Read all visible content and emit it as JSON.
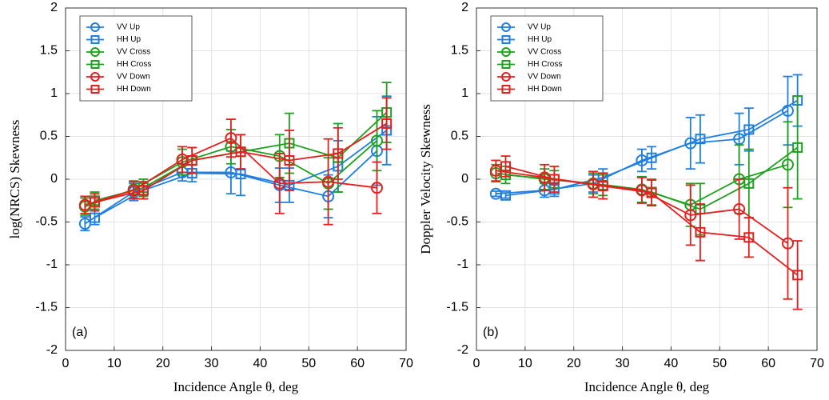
{
  "chart_data": [
    {
      "type": "line",
      "panel_label": "(a)",
      "ylabel": "log(NRCS) Skewness",
      "xlabel": "Incidence Angle θ, deg",
      "xlim": [
        0,
        70
      ],
      "ylim": [
        -2,
        2
      ],
      "xticks": [
        0,
        10,
        20,
        30,
        40,
        50,
        60,
        70
      ],
      "yticks": [
        -2,
        -1.5,
        -1,
        -0.5,
        0,
        0.5,
        1,
        1.5,
        2
      ],
      "grid": true,
      "series": [
        {
          "name": "VV Up",
          "color": "#1f7fe0",
          "marker": "circle",
          "x": [
            4,
            14,
            24,
            34,
            44,
            54,
            64
          ],
          "values": [
            -0.52,
            -0.15,
            0.08,
            0.08,
            -0.07,
            -0.2,
            0.33
          ],
          "errors": [
            0.08,
            0.1,
            0.1,
            0.25,
            0.2,
            0.25,
            0.4
          ]
        },
        {
          "name": "HH Up",
          "color": "#1f7fe0",
          "marker": "square",
          "x": [
            6,
            16,
            26,
            36,
            46,
            56,
            66
          ],
          "values": [
            -0.45,
            -0.13,
            0.07,
            0.06,
            -0.07,
            0.15,
            0.57
          ],
          "errors": [
            0.08,
            0.1,
            0.1,
            0.25,
            0.2,
            0.3,
            0.4
          ]
        },
        {
          "name": "VV Cross",
          "color": "#1fa01f",
          "marker": "circle",
          "x": [
            4,
            14,
            24,
            34,
            44,
            54,
            64
          ],
          "values": [
            -0.32,
            -0.12,
            0.2,
            0.38,
            0.27,
            -0.05,
            0.45
          ],
          "errors": [
            0.1,
            0.1,
            0.15,
            0.2,
            0.25,
            0.3,
            0.35
          ]
        },
        {
          "name": "HH Cross",
          "color": "#1fa01f",
          "marker": "square",
          "x": [
            6,
            16,
            26,
            36,
            46,
            56,
            66
          ],
          "values": [
            -0.25,
            -0.1,
            0.22,
            0.32,
            0.42,
            0.25,
            0.78
          ],
          "errors": [
            0.1,
            0.1,
            0.15,
            0.2,
            0.35,
            0.4,
            0.35
          ]
        },
        {
          "name": "VV Down",
          "color": "#e51e1e",
          "marker": "circle",
          "x": [
            4,
            14,
            24,
            34,
            44,
            54,
            64
          ],
          "values": [
            -0.3,
            -0.13,
            0.23,
            0.48,
            -0.05,
            -0.03,
            -0.1
          ],
          "errors": [
            0.1,
            0.1,
            0.15,
            0.22,
            0.35,
            0.5,
            0.3
          ]
        },
        {
          "name": "HH Down",
          "color": "#e51e1e",
          "marker": "square",
          "x": [
            6,
            16,
            26,
            36,
            46,
            56,
            66
          ],
          "values": [
            -0.27,
            -0.13,
            0.22,
            0.32,
            0.22,
            0.3,
            0.65
          ],
          "errors": [
            0.1,
            0.1,
            0.15,
            0.2,
            0.35,
            0.3,
            0.3
          ]
        }
      ]
    },
    {
      "type": "line",
      "panel_label": "(b)",
      "ylabel": "Doppler Velocity Skewness",
      "xlabel": "Incidence Angle θ, deg",
      "xlim": [
        0,
        70
      ],
      "ylim": [
        -2,
        2
      ],
      "xticks": [
        0,
        10,
        20,
        30,
        40,
        50,
        60,
        70
      ],
      "yticks": [
        -2,
        -1.5,
        -1,
        -0.5,
        0,
        0.5,
        1,
        1.5,
        2
      ],
      "grid": true,
      "series": [
        {
          "name": "VV Up",
          "color": "#1f7fe0",
          "marker": "circle",
          "x": [
            4,
            14,
            24,
            34,
            44,
            54,
            64
          ],
          "values": [
            -0.17,
            -0.13,
            -0.05,
            0.22,
            0.42,
            0.47,
            0.8
          ],
          "errors": [
            0.03,
            0.08,
            0.1,
            0.13,
            0.3,
            0.3,
            0.4
          ]
        },
        {
          "name": "HH Up",
          "color": "#1f7fe0",
          "marker": "square",
          "x": [
            6,
            16,
            26,
            36,
            46,
            56,
            66
          ],
          "values": [
            -0.19,
            -0.12,
            0.02,
            0.25,
            0.47,
            0.58,
            0.92
          ],
          "errors": [
            0.03,
            0.08,
            0.1,
            0.13,
            0.28,
            0.25,
            0.3
          ]
        },
        {
          "name": "VV Cross",
          "color": "#1fa01f",
          "marker": "circle",
          "x": [
            4,
            14,
            24,
            34,
            44,
            54,
            64
          ],
          "values": [
            0.07,
            0.0,
            -0.05,
            -0.12,
            -0.3,
            0.0,
            0.17
          ],
          "errors": [
            0.1,
            0.12,
            0.12,
            0.15,
            0.25,
            0.4,
            0.5
          ]
        },
        {
          "name": "HH Cross",
          "color": "#1fa01f",
          "marker": "square",
          "x": [
            6,
            16,
            26,
            36,
            46,
            56,
            66
          ],
          "values": [
            0.05,
            0.0,
            -0.07,
            -0.15,
            -0.35,
            -0.05,
            0.37
          ],
          "errors": [
            0.1,
            0.1,
            0.12,
            0.15,
            0.3,
            0.4,
            0.6
          ]
        },
        {
          "name": "VV Down",
          "color": "#e51e1e",
          "marker": "circle",
          "x": [
            4,
            14,
            24,
            34,
            44,
            54,
            64
          ],
          "values": [
            0.1,
            0.02,
            -0.06,
            -0.13,
            -0.42,
            -0.35,
            -0.75
          ],
          "errors": [
            0.12,
            0.15,
            0.15,
            0.15,
            0.35,
            0.35,
            0.65
          ]
        },
        {
          "name": "HH Down",
          "color": "#e51e1e",
          "marker": "square",
          "x": [
            6,
            16,
            26,
            36,
            46,
            56,
            66
          ],
          "values": [
            0.15,
            0.0,
            -0.08,
            -0.16,
            -0.62,
            -0.68,
            -1.12
          ],
          "errors": [
            0.12,
            0.15,
            0.15,
            0.15,
            0.33,
            0.23,
            0.4
          ]
        }
      ]
    }
  ]
}
